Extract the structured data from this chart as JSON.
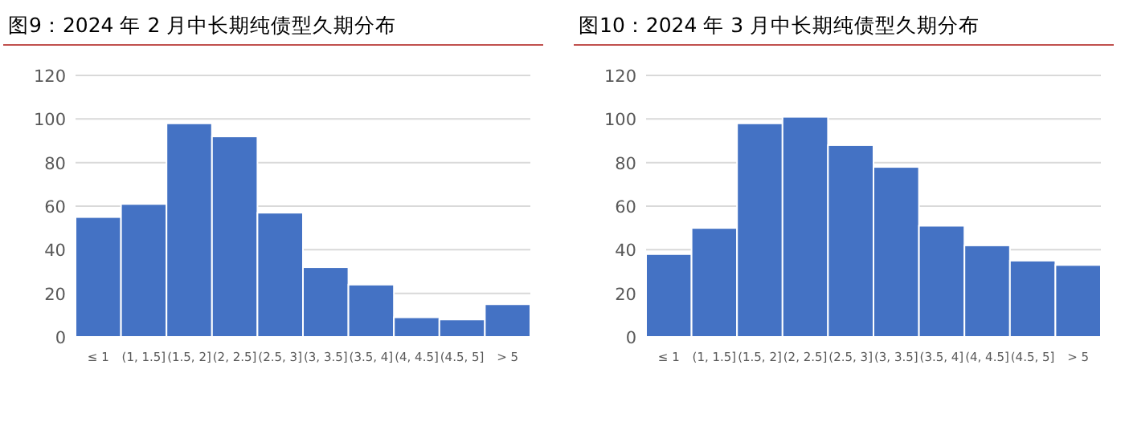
{
  "chart_data": [
    {
      "type": "bar",
      "title": "图9：2024 年 2 月中长期纯债型久期分布",
      "categories": [
        "≤ 1",
        "(1, 1.5]",
        "(1.5, 2]",
        "(2, 2.5]",
        "(2.5, 3]",
        "(3, 3.5]",
        "(3.5, 4]",
        "(4, 4.5]",
        "(4.5, 5]",
        "> 5"
      ],
      "values": [
        55,
        61,
        98,
        92,
        57,
        32,
        24,
        9,
        8,
        15
      ],
      "color": "#4472c4",
      "ylim": [
        0,
        120
      ],
      "yticks": [
        0,
        20,
        40,
        60,
        80,
        100,
        120
      ],
      "grid": "y"
    },
    {
      "type": "bar",
      "title": "图10：2024 年 3 月中长期纯债型久期分布",
      "categories": [
        "≤ 1",
        "(1, 1.5]",
        "(1.5, 2]",
        "(2, 2.5]",
        "(2.5, 3]",
        "(3, 3.5]",
        "(3.5, 4]",
        "(4, 4.5]",
        "(4.5, 5]",
        "> 5"
      ],
      "values": [
        38,
        50,
        98,
        101,
        88,
        78,
        51,
        42,
        35,
        33
      ],
      "color": "#4472c4",
      "ylim": [
        0,
        120
      ],
      "yticks": [
        0,
        20,
        40,
        60,
        80,
        100,
        120
      ],
      "grid": "y"
    }
  ]
}
